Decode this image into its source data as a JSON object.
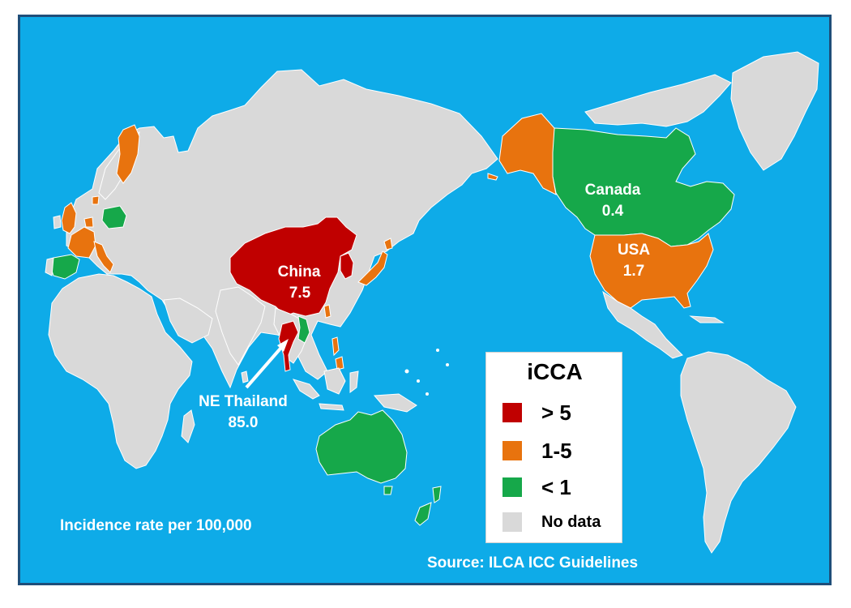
{
  "colors": {
    "ocean": "#0EABE8",
    "frame": "#1F4E79",
    "high": "#C00000",
    "mid": "#E8730E",
    "low": "#16A84A",
    "nodata": "#D9D9D9",
    "border": "#ffffff"
  },
  "labels": {
    "china": {
      "name": "China",
      "value": "7.5"
    },
    "ne_thailand": {
      "name": "NE Thailand",
      "value": "85.0"
    },
    "canada": {
      "name": "Canada",
      "value": "0.4"
    },
    "usa": {
      "name": "USA",
      "value": "1.7"
    }
  },
  "legend": {
    "title": "iCCA",
    "items": [
      {
        "label": "> 5",
        "color": "#C00000"
      },
      {
        "label": "1-5",
        "color": "#E8730E"
      },
      {
        "label": "< 1",
        "color": "#16A84A"
      },
      {
        "label": "No data",
        "color": "#D9D9D9"
      }
    ]
  },
  "footnote": "Incidence rate per 100,000",
  "source": "Source: ILCA ICC Guidelines"
}
